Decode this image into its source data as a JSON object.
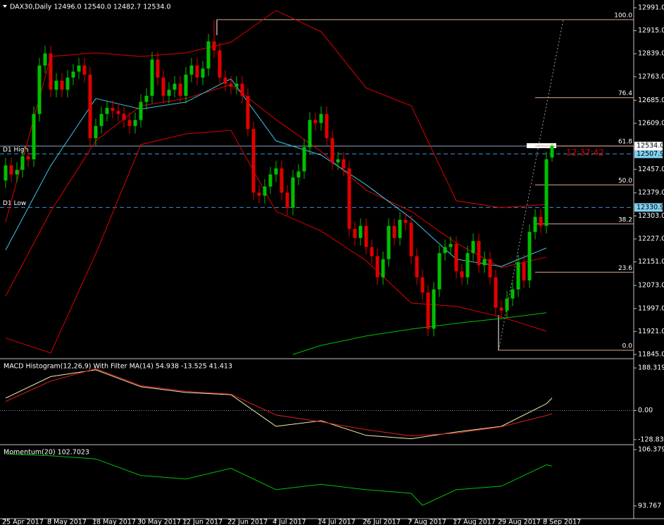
{
  "chart_data": [
    {
      "type": "candlestick",
      "title": "DAX30,Daily  12496.0 12540.0 12482.7 12534.0",
      "categories": [
        "25 Apr 2017",
        null,
        null,
        null,
        null,
        null,
        null,
        null,
        "8 May 2017",
        null,
        null,
        null,
        null,
        null,
        null,
        null,
        "18 May 2017",
        null,
        null,
        null,
        null,
        null,
        null,
        null,
        "30 May 2017",
        null,
        null,
        null,
        null,
        null,
        null,
        null,
        "12 Jun 2017",
        null,
        null,
        null,
        null,
        null,
        null,
        null,
        "22 Jun 2017",
        null,
        null,
        null,
        null,
        null,
        null,
        null,
        "4 Jul 2017",
        null,
        null,
        null,
        null,
        null,
        null,
        null,
        "14 Jul 2017",
        null,
        null,
        null,
        null,
        null,
        null,
        null,
        "26 Jul 2017",
        null,
        null,
        null,
        null,
        null,
        null,
        null,
        "7 Aug 2017",
        null,
        null,
        null,
        null,
        null,
        null,
        null,
        "17 Aug 2017",
        null,
        null,
        null,
        null,
        null,
        null,
        null,
        "29 Aug 2017",
        null,
        null,
        null,
        null,
        null,
        null,
        null,
        "8 Sep 2017",
        null
      ],
      "open": [
        12420,
        12470,
        12440,
        12455,
        12500,
        12490,
        12640,
        12800,
        12840,
        12720,
        12750,
        12720,
        12760,
        12780,
        12800,
        12770,
        12560,
        12600,
        12640,
        12660,
        12650,
        12640,
        12620,
        12600,
        12620,
        12680,
        12700,
        12820,
        12760,
        12700,
        12720,
        12740,
        12700,
        12770,
        12800,
        12760,
        12790,
        12880,
        12850,
        12760,
        12740,
        12730,
        12740,
        12700,
        12590,
        12380,
        12370,
        12400,
        12440,
        12460,
        12380,
        12330,
        12430,
        12450,
        12530,
        12620,
        12610,
        12640,
        12560,
        12480,
        12490,
        12460,
        12260,
        12230,
        12270,
        12200,
        12170,
        12100,
        12160,
        12270,
        12230,
        12290,
        12280,
        12170,
        12100,
        12050,
        11930,
        12060,
        12180,
        12200,
        12210,
        12120,
        12100,
        12180,
        12220,
        12140,
        12160,
        12100,
        12000,
        11990,
        12030,
        12060,
        12150,
        12090,
        12250,
        12300,
        12270,
        12496
      ],
      "high": [
        12495,
        12495,
        12480,
        12525,
        12525,
        12665,
        12825,
        12865,
        12865,
        12775,
        12775,
        12785,
        12805,
        12825,
        12825,
        12795,
        12625,
        12665,
        12685,
        12685,
        12675,
        12665,
        12645,
        12645,
        12705,
        12725,
        12845,
        12845,
        12785,
        12745,
        12765,
        12765,
        12795,
        12825,
        12825,
        12815,
        12905,
        12950,
        12875,
        12785,
        12765,
        12765,
        12765,
        12725,
        12615,
        12405,
        12425,
        12465,
        12485,
        12485,
        12405,
        12455,
        12475,
        12555,
        12645,
        12645,
        12665,
        12665,
        12585,
        12515,
        12515,
        12485,
        12285,
        12295,
        12295,
        12225,
        12195,
        12185,
        12295,
        12295,
        12315,
        12315,
        12305,
        12195,
        12125,
        12075,
        12085,
        12205,
        12225,
        12235,
        12235,
        12145,
        12205,
        12245,
        12245,
        12185,
        12185,
        12125,
        12025,
        12055,
        12085,
        12175,
        12175,
        12275,
        12325,
        12325,
        12515,
        12540
      ],
      "low": [
        12395,
        12415,
        12415,
        12430,
        12465,
        12465,
        12615,
        12775,
        12695,
        12695,
        12695,
        12695,
        12735,
        12755,
        12745,
        12535,
        12535,
        12575,
        12615,
        12625,
        12615,
        12595,
        12575,
        12575,
        12595,
        12655,
        12675,
        12735,
        12675,
        12675,
        12695,
        12675,
        12675,
        12745,
        12735,
        12735,
        12765,
        12825,
        12735,
        12715,
        12705,
        12705,
        12675,
        12565,
        12355,
        12345,
        12345,
        12375,
        12415,
        12355,
        12305,
        12305,
        12405,
        12425,
        12505,
        12585,
        12585,
        12535,
        12455,
        12455,
        12435,
        12235,
        12205,
        12205,
        12175,
        12145,
        12075,
        12075,
        12135,
        12205,
        12205,
        12255,
        12145,
        12075,
        12025,
        11905,
        11905,
        12035,
        12155,
        12175,
        12095,
        12075,
        12075,
        12155,
        12115,
        12115,
        12075,
        11975,
        11965,
        11965,
        12005,
        12035,
        12065,
        12065,
        12225,
        12245,
        12245,
        12482.7
      ],
      "close": [
        12470,
        12440,
        12455,
        12500,
        12490,
        12640,
        12800,
        12840,
        12720,
        12750,
        12720,
        12760,
        12780,
        12800,
        12770,
        12560,
        12600,
        12640,
        12660,
        12650,
        12640,
        12620,
        12600,
        12620,
        12680,
        12700,
        12820,
        12760,
        12700,
        12720,
        12740,
        12700,
        12770,
        12800,
        12760,
        12790,
        12880,
        12850,
        12760,
        12740,
        12730,
        12740,
        12700,
        12590,
        12380,
        12370,
        12400,
        12440,
        12460,
        12380,
        12330,
        12430,
        12450,
        12530,
        12620,
        12610,
        12640,
        12560,
        12480,
        12490,
        12460,
        12260,
        12230,
        12270,
        12200,
        12170,
        12100,
        12160,
        12270,
        12230,
        12290,
        12280,
        12170,
        12100,
        12050,
        11930,
        12060,
        12180,
        12200,
        12210,
        12120,
        12100,
        12180,
        12220,
        12140,
        12160,
        12100,
        12000,
        11990,
        12030,
        12060,
        12150,
        12090,
        12250,
        12300,
        12270,
        12490,
        12534
      ],
      "up_color": "#00c000",
      "down_color": "#e00000",
      "series": [
        {
          "color": "#e00000",
          "x": [
            0,
            8,
            16,
            24,
            32,
            40,
            48,
            56,
            64,
            72,
            80,
            88,
            96
          ],
          "values": [
            12283,
            12830,
            12842,
            12830,
            12842,
            12877,
            12982,
            12912,
            12726,
            12667,
            12353,
            12330,
            12341
          ]
        },
        {
          "color": "#e00000",
          "x": [
            0,
            8,
            16,
            24,
            32,
            40,
            48,
            56,
            64,
            72,
            80,
            88,
            96
          ],
          "values": [
            11899,
            11850,
            12178,
            12539,
            12574,
            12586,
            12318,
            12253,
            12155,
            12015,
            12004,
            11969,
            11922
          ]
        },
        {
          "color": "#e00000",
          "x": [
            0,
            8,
            16,
            24,
            32,
            40,
            48,
            56,
            64,
            72,
            80,
            88,
            96
          ],
          "values": [
            12038,
            12318,
            12551,
            12667,
            12691,
            12737,
            12621,
            12516,
            12388,
            12318,
            12213,
            12132,
            12167
          ]
        },
        {
          "color": "#3cc8e8",
          "x": [
            0,
            8,
            16,
            24,
            32,
            40,
            48,
            56,
            64,
            72,
            80,
            88,
            96
          ],
          "values": [
            12190,
            12469,
            12691,
            12656,
            12679,
            12756,
            12551,
            12504,
            12406,
            12295,
            12160,
            12136,
            12197
          ]
        },
        {
          "color": "#00c000",
          "x": [
            51,
            56,
            64,
            72,
            80,
            88,
            96
          ],
          "values": [
            11845,
            11875,
            11906,
            11929,
            11948,
            11964,
            11983
          ]
        }
      ],
      "ylim": [
        11833.4,
        13009.6
      ],
      "yticks": [
        {
          "value": 12991,
          "label": "12991.0"
        },
        {
          "value": 12915,
          "label": "12915.0"
        },
        {
          "value": 12839,
          "label": "12839.0"
        },
        {
          "value": 12763,
          "label": "12763.0"
        },
        {
          "value": 12685,
          "label": "12685.0"
        },
        {
          "value": 12609,
          "label": "12609.0"
        },
        {
          "value": 12457,
          "label": "12457.0"
        },
        {
          "value": 12379,
          "label": "12379.0"
        },
        {
          "value": 12303,
          "label": "12303.0"
        },
        {
          "value": 12227,
          "label": "12227.0"
        },
        {
          "value": 12151,
          "label": "12151.0"
        },
        {
          "value": 12073,
          "label": "12073.0"
        },
        {
          "value": 11997,
          "label": "11997.0"
        },
        {
          "value": 11921,
          "label": "11921.0"
        },
        {
          "value": 11845,
          "label": "11845.0"
        }
      ],
      "levels": [
        {
          "name": "D1 High",
          "value": 12507.9,
          "label": "12507.9",
          "color": "#3a8fd8"
        },
        {
          "name": "D1 Low",
          "value": 12330.9,
          "label": "12330.9",
          "color": "#3a8fd8"
        }
      ],
      "last_price": {
        "value": 12534,
        "label": "12534.0"
      },
      "timer": "12:37:42",
      "fibonacci": {
        "high": 12951.7,
        "low": 11859,
        "color": "#d8a890",
        "levels": [
          {
            "value": 100,
            "label": "100.0"
          },
          {
            "value": 76.4,
            "label": "76.4"
          },
          {
            "value": 61.8,
            "label": "61.8"
          },
          {
            "value": 50,
            "label": "50.0"
          },
          {
            "value": 38.2,
            "label": "38.2"
          },
          {
            "value": 23.6,
            "label": "23.6"
          },
          {
            "value": 0,
            "label": "0.0"
          }
        ]
      }
    },
    {
      "type": "line",
      "title": "MACD Histogram(12,26,9) With Filter MA(14) 54.938 -13.525 41.413",
      "series": [
        {
          "color": "#f0f0b0",
          "x": [
            0,
            8,
            16,
            24,
            32,
            40,
            48,
            56,
            64,
            72,
            80,
            88,
            96,
            97
          ],
          "values": [
            55,
            150,
            180,
            105,
            80,
            70,
            -70,
            -45,
            -110,
            -125,
            -95,
            -70,
            30,
            54.938
          ]
        },
        {
          "color": "#e02020",
          "x": [
            0,
            8,
            16,
            24,
            32,
            40,
            48,
            56,
            64,
            72,
            80,
            88,
            96,
            97
          ],
          "values": [
            40,
            130,
            185,
            110,
            85,
            72,
            -20,
            -50,
            -85,
            -112,
            -100,
            -72,
            -22,
            -13.525
          ]
        }
      ],
      "ylim": [
        -148,
        223
      ],
      "yticks": [
        188.319,
        {
          "value": 0,
          "label": "0.00"
        },
        -128.834
      ],
      "zero_line": true
    },
    {
      "type": "line",
      "title": "Momentum(20) 102.7023",
      "series": [
        {
          "color": "#00c000",
          "x": [
            0,
            8,
            16,
            24,
            32,
            40,
            48,
            56,
            64,
            72,
            74,
            80,
            88,
            96,
            97
          ],
          "values": [
            105.4,
            105.0,
            104.3,
            100.6,
            99.8,
            102.2,
            97.4,
            98.6,
            97.4,
            96.6,
            93.9,
            97.4,
            98.2,
            103.0,
            102.7023
          ]
        }
      ],
      "ylim": [
        91.07,
        107.18
      ],
      "yticks": [
        106.379,
        93.767
      ]
    }
  ]
}
